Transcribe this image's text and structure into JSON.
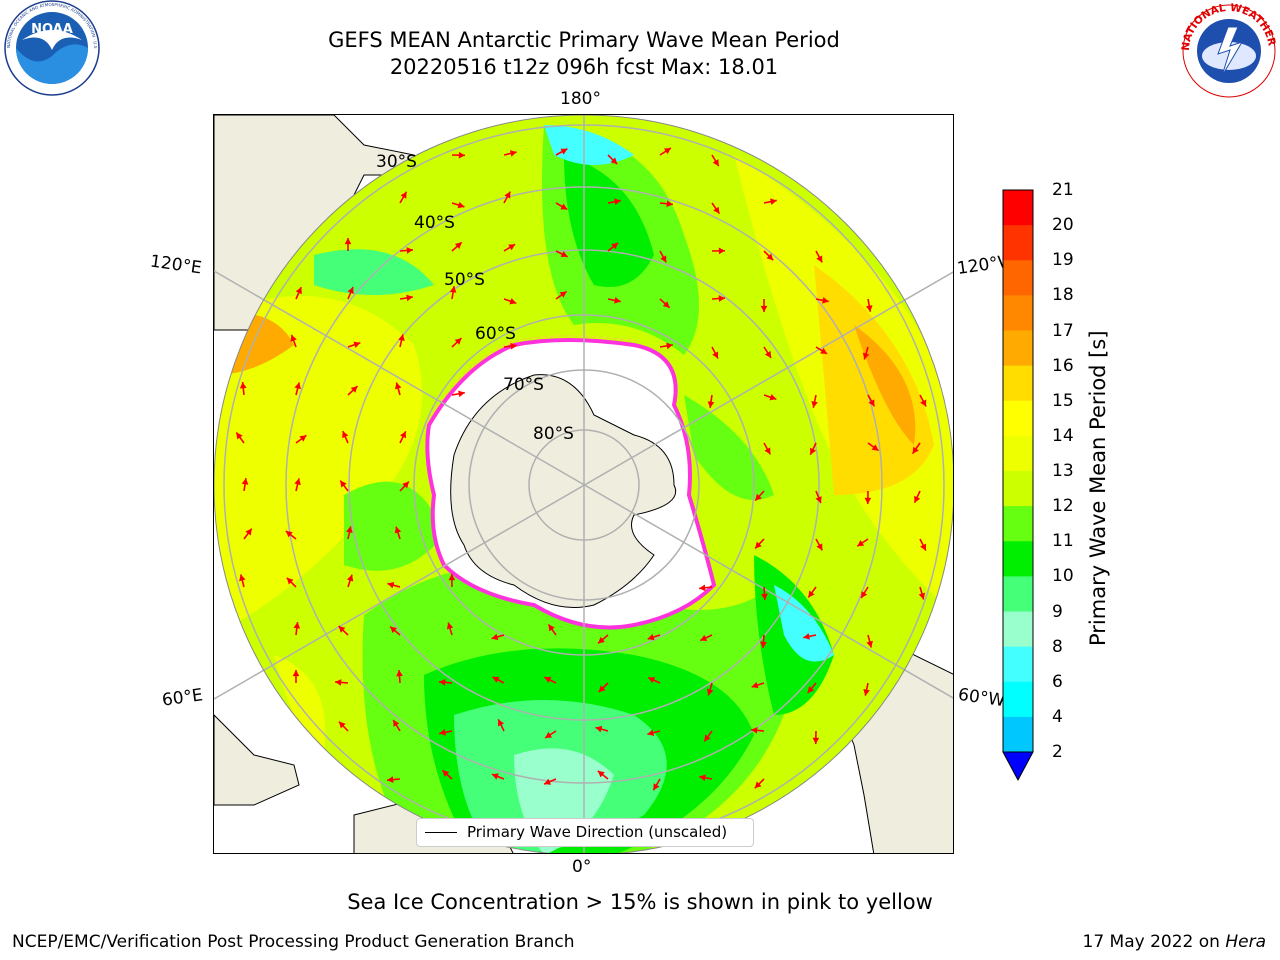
{
  "header": {
    "title_line1": "GEFS MEAN Antarctic Primary Wave Mean Period",
    "title_line2": "20220516 t12z 096h fcst   Max: 18.01"
  },
  "logos": {
    "left": {
      "name": "NOAA",
      "text": "NOAA",
      "ring_text": "NATIONAL OCEANIC AND ATMOSPHERIC ADMINISTRATION · U.S. DEPARTMENT OF COMMERCE"
    },
    "right": {
      "name": "National Weather Service",
      "ring_text": "NATIONAL WEATHER SERVICE"
    }
  },
  "map": {
    "projection": "south-polar-stereographic",
    "longitude_labels": {
      "top": "180°",
      "bottom": "0°",
      "upper_left": "120°E",
      "upper_right": "120°W",
      "lower_left": "60°E",
      "lower_right": "60°W"
    },
    "latitude_labels": [
      "30°S",
      "40°S",
      "50°S",
      "60°S",
      "70°S",
      "80°S"
    ],
    "legend": "Primary Wave Direction (unscaled)",
    "colors": {
      "land": "#efedde",
      "ice": "#ffffff",
      "ice_edge": "#ff33dd",
      "grid": "#b0b0b0",
      "arrow": "#ff0000"
    }
  },
  "colorbar": {
    "label": "Primary Wave Mean Period [s]",
    "ticks": [
      "21",
      "20",
      "19",
      "18",
      "17",
      "16",
      "15",
      "14",
      "13",
      "12",
      "11",
      "10",
      "9",
      "8",
      "6",
      "4",
      "2"
    ],
    "colors": [
      "#ff0000",
      "#ff3300",
      "#ff6600",
      "#ff8800",
      "#ffaa00",
      "#ffdd00",
      "#ffff00",
      "#eeff00",
      "#ccff00",
      "#66ff11",
      "#00ee00",
      "#44ff77",
      "#99ffcc",
      "#44ffff",
      "#00ffff",
      "#00c8ff",
      "#0066ff"
    ],
    "extend_color": "#0000ff"
  },
  "footer": {
    "sea_ice_note": "Sea Ice Concentration > 15% is shown in pink to yellow",
    "left": "NCEP/EMC/Verification Post Processing Product Generation Branch",
    "right_prefix": "17 May 2022 on ",
    "right_host": "Hera"
  }
}
